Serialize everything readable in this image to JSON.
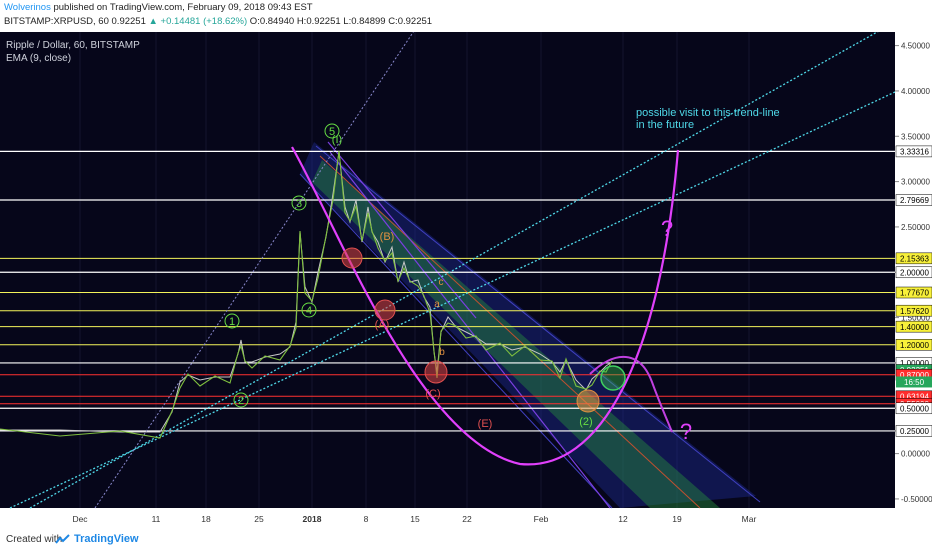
{
  "header": {
    "author": "Wolverinos",
    "published": " published on TradingView.com, February 09, 2018 09:43 EST",
    "symbol_line": "BITSTAMP:XRPUSD, 60  0.92251 ",
    "change": "▲ +0.14481 (+18.62%)",
    "ohlc": " O:0.84940 H:0.92251 L:0.84899 C:0.92251"
  },
  "footer": {
    "created": "Created with",
    "brand": "TradingView"
  },
  "chart_data": {
    "type": "line",
    "title": "Ripple / Dollar, 60, BITSTAMP",
    "indicator": "EMA (9, close)",
    "x_ticks": [
      "Dec",
      "11",
      "18",
      "25",
      "2018",
      "8",
      "15",
      "22",
      "Feb",
      "12",
      "19",
      "Mar"
    ],
    "y_ticks": [
      "4.50000",
      "4.00000",
      "3.50000",
      "3.00000",
      "2.50000",
      "2.00000",
      "1.50000",
      "1.00000",
      "0.50000",
      "0.25000",
      "0.00000",
      "-0.50000"
    ],
    "ylim": [
      -0.6,
      4.65
    ],
    "price_labels": [
      {
        "value": 3.33316,
        "text": "3.33316",
        "style": "white"
      },
      {
        "value": 2.79669,
        "text": "2.79669",
        "style": "white"
      },
      {
        "value": 2.15363,
        "text": "2.15363",
        "style": "yellow"
      },
      {
        "value": 2.0,
        "text": "2.00000",
        "style": "white"
      },
      {
        "value": 1.7767,
        "text": "1.77670",
        "style": "yellow"
      },
      {
        "value": 1.5762,
        "text": "1.57620",
        "style": "yellow"
      },
      {
        "value": 1.4,
        "text": "1.40000",
        "style": "yellow"
      },
      {
        "value": 1.2,
        "text": "1.20000",
        "style": "yellow"
      },
      {
        "value": 1.0,
        "text": "1.00000",
        "style": "white"
      },
      {
        "value": 0.92251,
        "text": "0.92251",
        "style": "green"
      },
      {
        "value": 0.87,
        "text": "0.87000",
        "style": "red"
      },
      {
        "value": 0.63194,
        "text": "0.63194",
        "style": "red"
      },
      {
        "value": 0.55,
        "text": "0.55000",
        "style": "red"
      },
      {
        "value": 0.5,
        "text": "0.50000",
        "style": "white"
      },
      {
        "value": 0.25,
        "text": "0.25000",
        "style": "white"
      }
    ],
    "countdown": "16:50",
    "annotation": [
      "possible visit to this trend-line",
      "in the future"
    ],
    "wave_labels": [
      "1",
      "2",
      "3",
      "4",
      "5",
      "(I)",
      "(A)",
      "(B)",
      "(C)",
      "(E)",
      "(2)",
      "a",
      "b",
      "c",
      "?",
      "?"
    ]
  }
}
